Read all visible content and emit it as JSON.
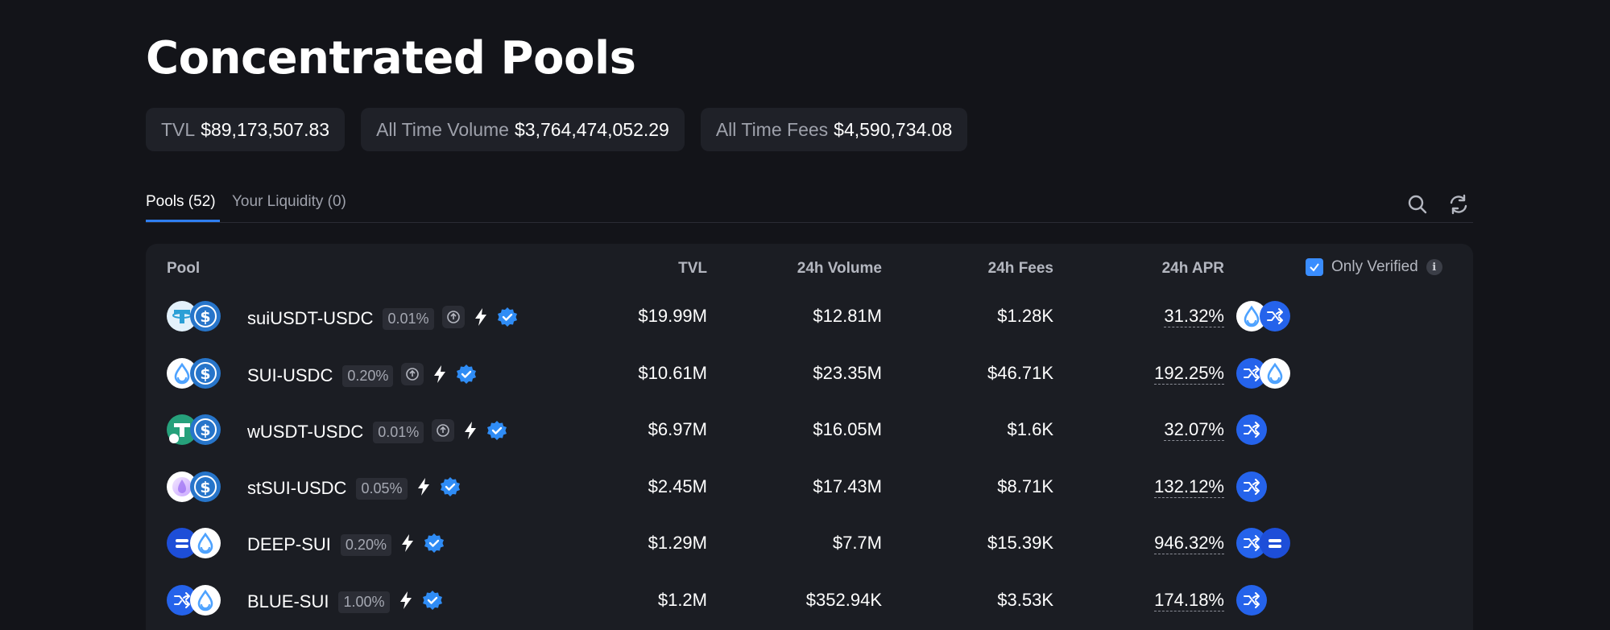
{
  "page_title": "Concentrated Pools",
  "stats": [
    {
      "label": "TVL",
      "value": "$89,173,507.83"
    },
    {
      "label": "All Time Volume",
      "value": "$3,764,474,052.29"
    },
    {
      "label": "All Time Fees",
      "value": "$4,590,734.08"
    }
  ],
  "tabs": [
    {
      "label": "Pools (52)",
      "active": true
    },
    {
      "label": "Your Liquidity (0)",
      "active": false
    }
  ],
  "toolbar": {
    "search_icon": "search-icon",
    "refresh_icon": "refresh-icon"
  },
  "table": {
    "headers": {
      "pool": "Pool",
      "tvl": "TVL",
      "volume": "24h Volume",
      "fees": "24h Fees",
      "apr": "24h APR"
    },
    "only_verified": {
      "label": "Only Verified",
      "checked": true,
      "info": "i"
    },
    "rows": [
      {
        "pair": "suiUSDT-USDC",
        "fee": "0.01%",
        "tvl": "$19.99M",
        "volume": "$12.81M",
        "fees": "$1.28K",
        "apr": "31.32%",
        "tokens": [
          "tether",
          "usdc"
        ],
        "badges": [
          "rewarder",
          "bolt",
          "verified"
        ],
        "rewards": [
          "sui",
          "cetus"
        ]
      },
      {
        "pair": "SUI-USDC",
        "fee": "0.20%",
        "tvl": "$10.61M",
        "volume": "$23.35M",
        "fees": "$46.71K",
        "apr": "192.25%",
        "tokens": [
          "sui",
          "usdc"
        ],
        "badges": [
          "rewarder",
          "bolt",
          "verified"
        ],
        "rewards": [
          "cetus",
          "sui"
        ]
      },
      {
        "pair": "wUSDT-USDC",
        "fee": "0.01%",
        "tvl": "$6.97M",
        "volume": "$16.05M",
        "fees": "$1.6K",
        "apr": "32.07%",
        "tokens": [
          "wusdt",
          "usdc"
        ],
        "badges": [
          "rewarder",
          "bolt",
          "verified"
        ],
        "rewards": [
          "cetus"
        ]
      },
      {
        "pair": "stSUI-USDC",
        "fee": "0.05%",
        "tvl": "$2.45M",
        "volume": "$17.43M",
        "fees": "$8.71K",
        "apr": "132.12%",
        "tokens": [
          "stsui",
          "usdc"
        ],
        "badges": [
          "bolt",
          "verified"
        ],
        "rewards": [
          "cetus"
        ]
      },
      {
        "pair": "DEEP-SUI",
        "fee": "0.20%",
        "tvl": "$1.29M",
        "volume": "$7.7M",
        "fees": "$15.39K",
        "apr": "946.32%",
        "tokens": [
          "deep",
          "sui"
        ],
        "badges": [
          "bolt",
          "verified"
        ],
        "rewards": [
          "cetus",
          "deep"
        ]
      },
      {
        "pair": "BLUE-SUI",
        "fee": "1.00%",
        "tvl": "$1.2M",
        "volume": "$352.94K",
        "fees": "$3.53K",
        "apr": "174.18%",
        "tokens": [
          "cetus",
          "sui"
        ],
        "badges": [
          "bolt",
          "verified"
        ],
        "rewards": [
          "cetus"
        ]
      }
    ]
  },
  "colors": {
    "background": "#131419",
    "panel": "#1b1d23",
    "accent": "#2f7ef0",
    "usdc": "#2775ca",
    "sui": "#4da2ff",
    "tether": "#26a17b"
  }
}
